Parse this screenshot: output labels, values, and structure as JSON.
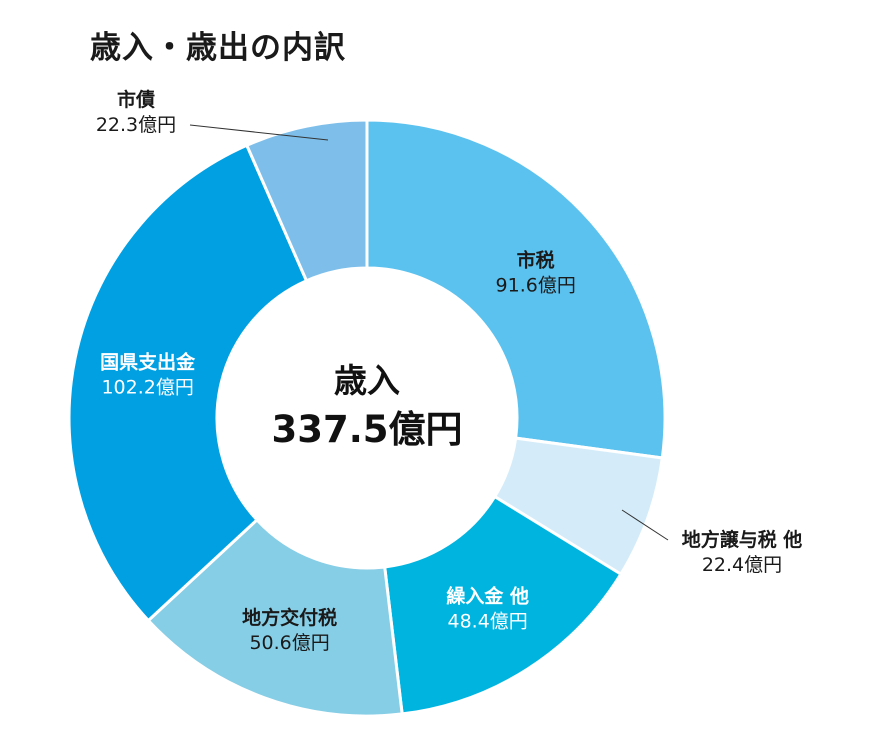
{
  "page": {
    "title": "歳入・歳出の内訳"
  },
  "chart_data": {
    "type": "pie",
    "variant": "donut",
    "title": "歳入・歳出の内訳",
    "center_label": "歳入",
    "center_value": "337.5億円",
    "total": 337.5,
    "unit": "億円",
    "categories": [
      "市税",
      "地方譲与税 他",
      "繰入金 他",
      "地方交付税",
      "国県支出金",
      "市債"
    ],
    "values": [
      91.6,
      22.4,
      48.4,
      50.6,
      102.2,
      22.3
    ],
    "value_labels": [
      "91.6億円",
      "22.4億円",
      "48.4億円",
      "50.6億円",
      "102.2億円",
      "22.3億円"
    ],
    "colors": [
      "#5bc2ef",
      "#d4ecf9",
      "#00b4e0",
      "#86cde6",
      "#00a0e3",
      "#7dbfea"
    ],
    "label_colors": [
      "#1a1a1a",
      "#1a1a1a",
      "#ffffff",
      "#1a1a1a",
      "#ffffff",
      "#1a1a1a"
    ],
    "start": "top",
    "direction": "clockwise",
    "legend": "none"
  }
}
